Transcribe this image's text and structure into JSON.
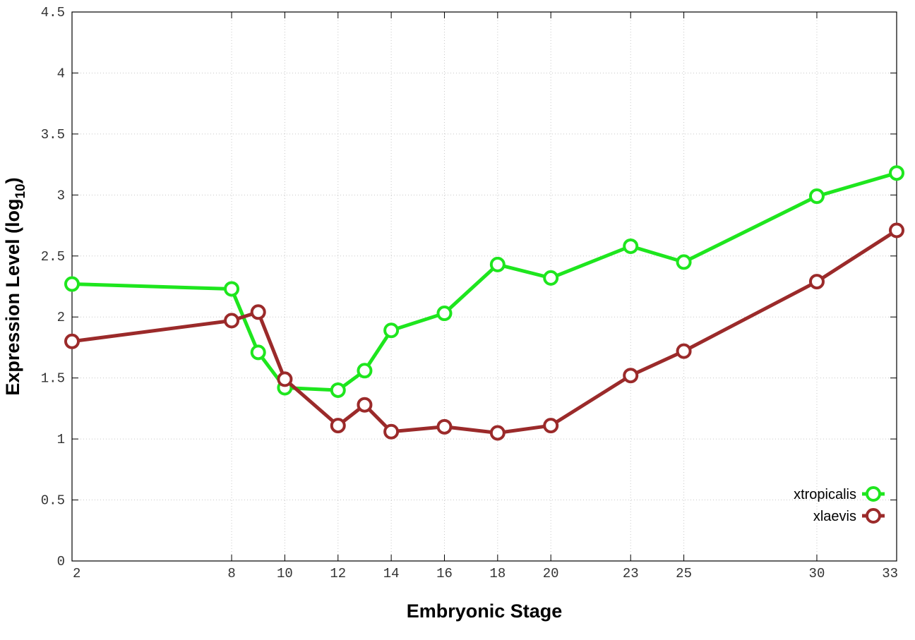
{
  "chart_data": {
    "type": "line",
    "xlabel": "Embryonic Stage",
    "ylabel_main": "Expression Level (log",
    "ylabel_sub": "10",
    "ylabel_close": ")",
    "ylim": [
      0,
      4.5
    ],
    "yticks": [
      0,
      0.5,
      1,
      1.5,
      2,
      2.5,
      3,
      3.5,
      4,
      4.5
    ],
    "ytick_labels": [
      "0",
      "0.5",
      "1",
      "1.5",
      "2",
      "2.5",
      "3",
      "3.5",
      "4",
      "4.5"
    ],
    "xticks": [
      2,
      8,
      10,
      12,
      14,
      16,
      18,
      20,
      23,
      25,
      30,
      33
    ],
    "xtick_labels": [
      "2",
      "8",
      "10",
      "12",
      "14",
      "16",
      "18",
      "20",
      "23",
      "25",
      "30",
      "33"
    ],
    "grid": true,
    "legend_position": "bottom-right",
    "series": [
      {
        "name": "xtropicalis",
        "color": "#1ee61e",
        "points": [
          [
            2,
            2.27
          ],
          [
            8,
            2.23
          ],
          [
            9,
            1.71
          ],
          [
            10,
            1.42
          ],
          [
            12,
            1.4
          ],
          [
            13,
            1.56
          ],
          [
            14,
            1.89
          ],
          [
            16,
            2.03
          ],
          [
            18,
            2.43
          ],
          [
            20,
            2.32
          ],
          [
            23,
            2.58
          ],
          [
            25,
            2.45
          ],
          [
            30,
            2.99
          ],
          [
            33,
            3.18
          ]
        ]
      },
      {
        "name": "xlaevis",
        "color": "#9b2a2a",
        "points": [
          [
            2,
            1.8
          ],
          [
            8,
            1.97
          ],
          [
            9,
            2.04
          ],
          [
            10,
            1.49
          ],
          [
            12,
            1.11
          ],
          [
            13,
            1.28
          ],
          [
            14,
            1.06
          ],
          [
            16,
            1.1
          ],
          [
            18,
            1.05
          ],
          [
            20,
            1.11
          ],
          [
            23,
            1.52
          ],
          [
            25,
            1.72
          ],
          [
            30,
            2.29
          ],
          [
            33,
            2.71
          ]
        ]
      }
    ]
  }
}
